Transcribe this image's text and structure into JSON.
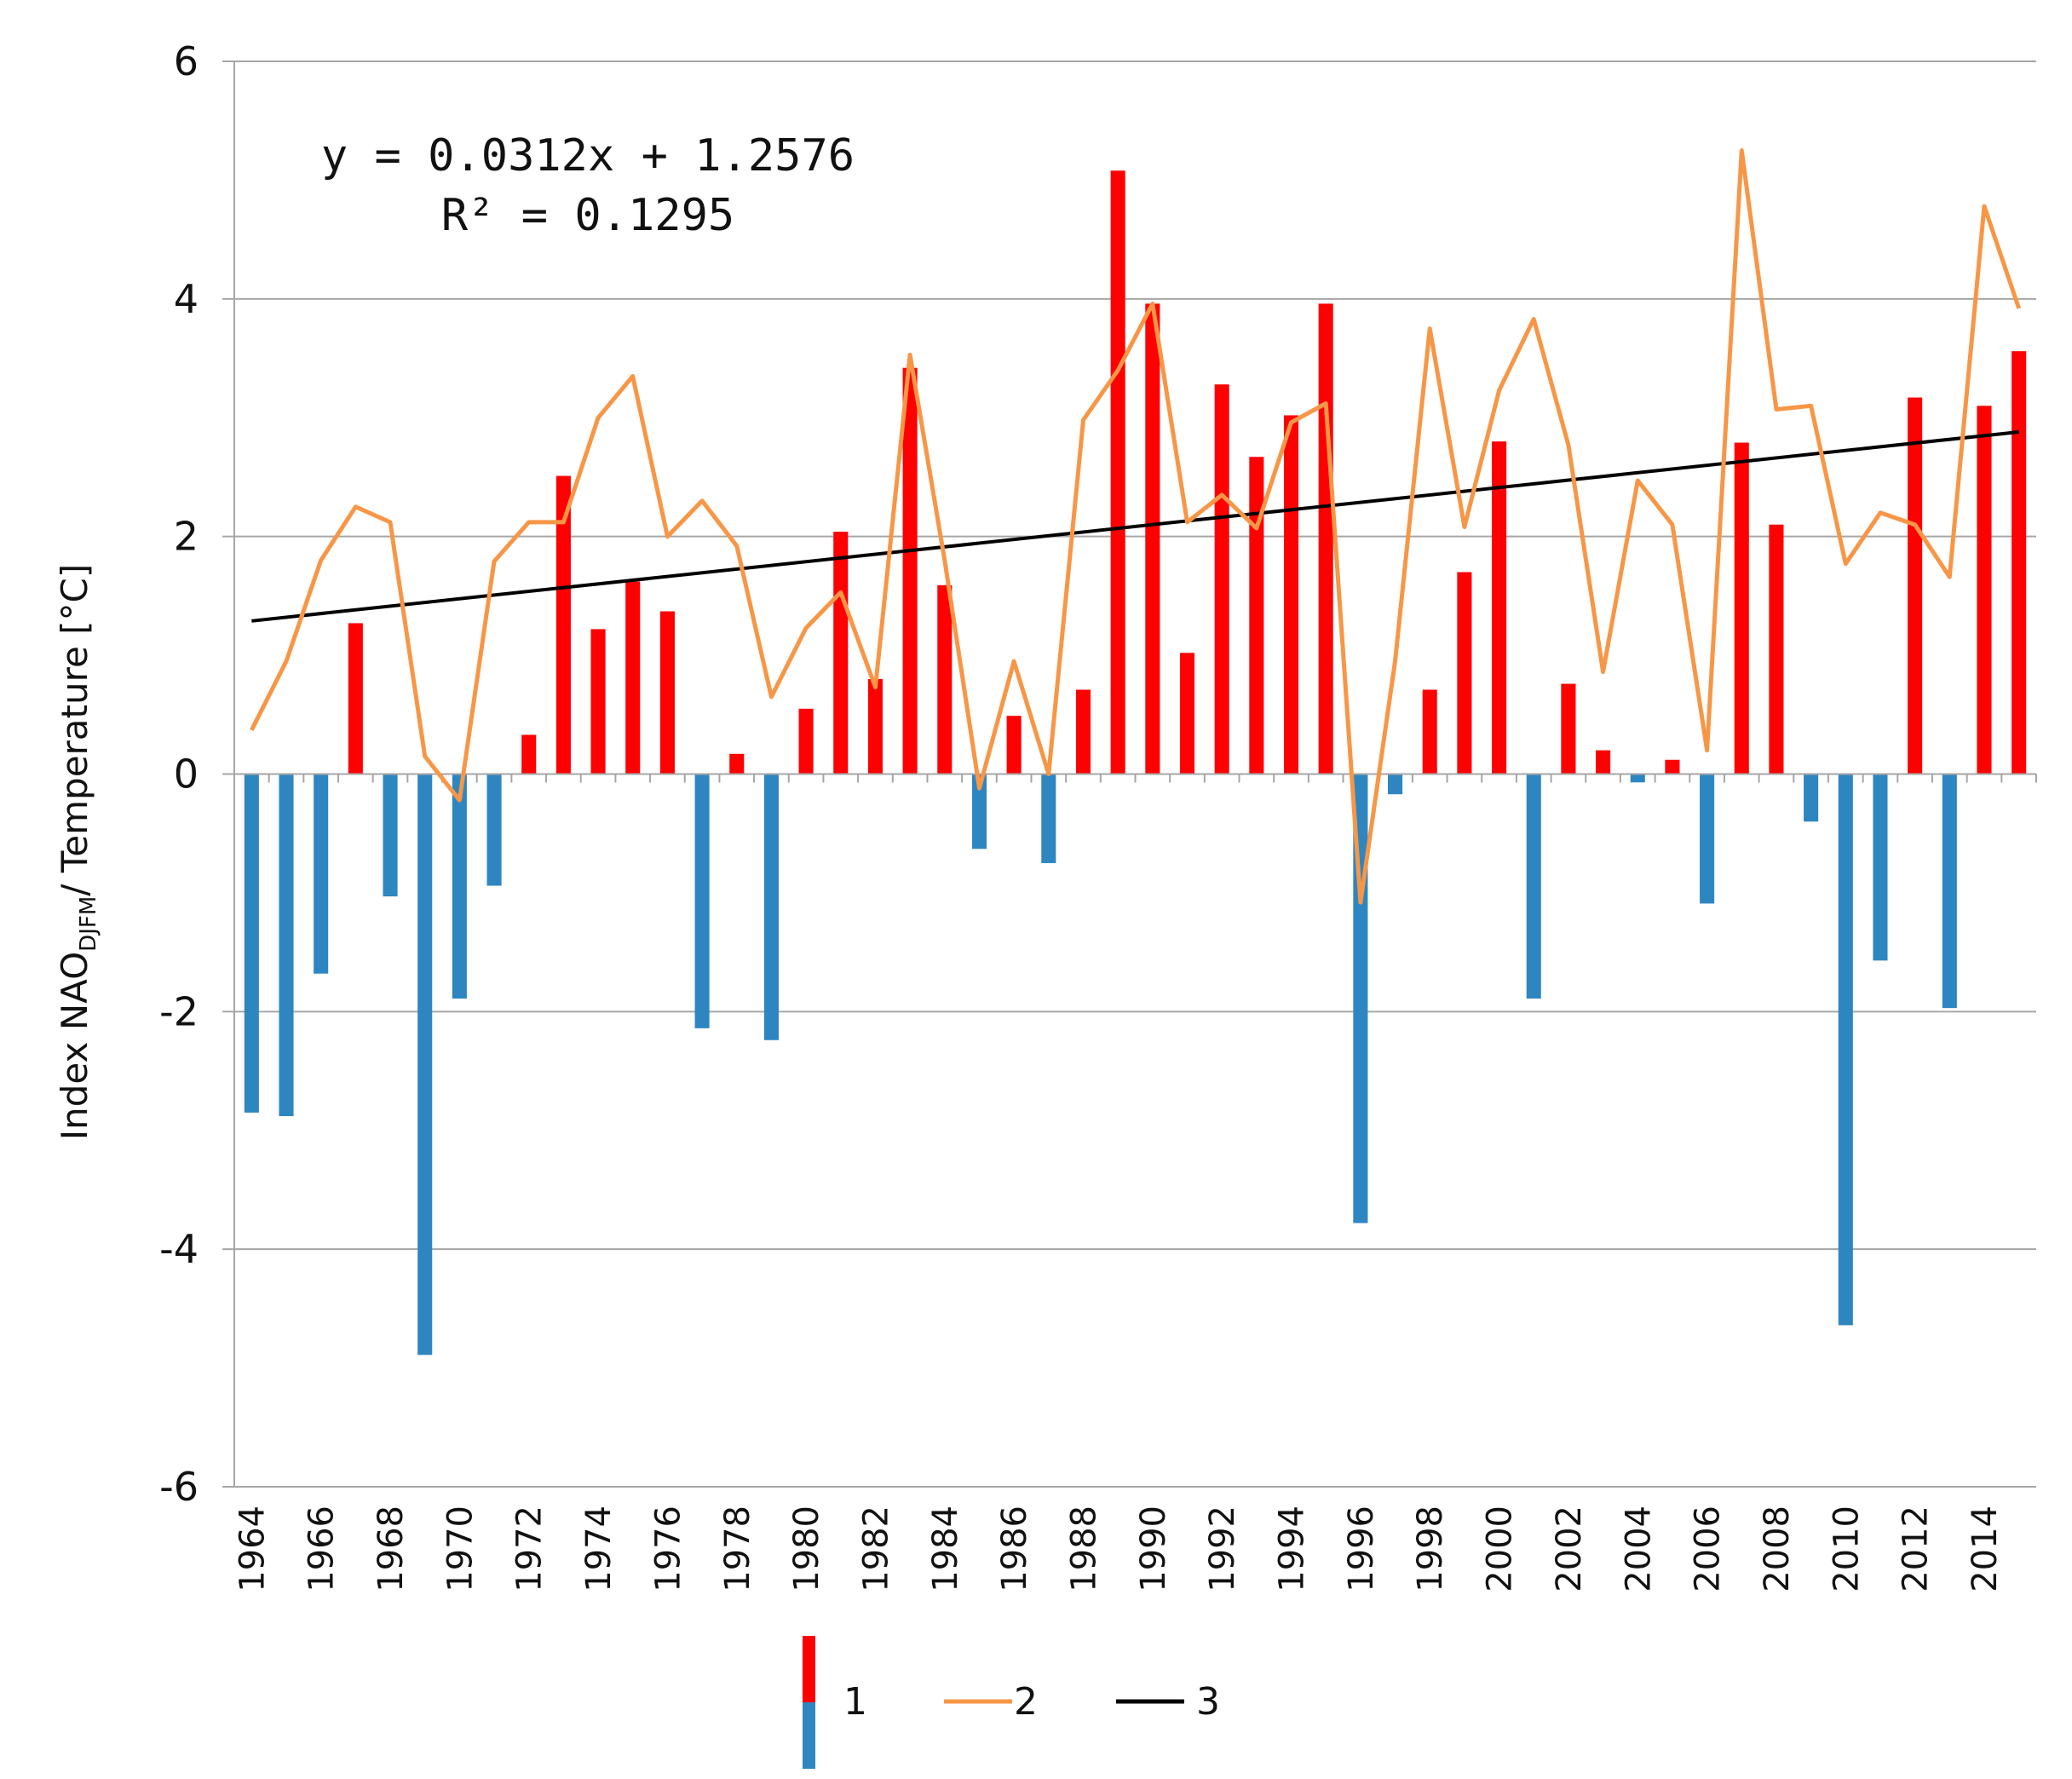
{
  "chart_data": {
    "type": "bar",
    "title": "",
    "xlabel": "",
    "ylabel": {
      "prefix": "Index NAO",
      "subscript": "DJFM",
      "suffix": "/ Temperature [°C]"
    },
    "ylim": [
      -6,
      6
    ],
    "yticks": [
      6,
      4,
      2,
      0,
      -2,
      -4,
      -6
    ],
    "years": [
      1964,
      1965,
      1966,
      1967,
      1968,
      1969,
      1970,
      1971,
      1972,
      1973,
      1974,
      1975,
      1976,
      1977,
      1978,
      1979,
      1980,
      1981,
      1982,
      1983,
      1984,
      1985,
      1986,
      1987,
      1988,
      1989,
      1990,
      1991,
      1992,
      1993,
      1994,
      1995,
      1996,
      1997,
      1998,
      1999,
      2000,
      2001,
      2002,
      2003,
      2004,
      2005,
      2006,
      2007,
      2008,
      2009,
      2010,
      2011,
      2012,
      2013,
      2014,
      2015
    ],
    "xtick_labels": [
      "1964",
      "1966",
      "1968",
      "1970",
      "1972",
      "1974",
      "1976",
      "1978",
      "1980",
      "1982",
      "1984",
      "1986",
      "1988",
      "1990",
      "1992",
      "1994",
      "1996",
      "1998",
      "2000",
      "2002",
      "2004",
      "2006",
      "2008",
      "2010",
      "2012",
      "2014"
    ],
    "series": [
      {
        "name": "1",
        "kind": "bar",
        "positive_color": "#ff0000",
        "negative_color": "#2e86c1",
        "values": [
          -2.85,
          -2.88,
          -1.68,
          1.27,
          -1.03,
          -4.89,
          -1.89,
          -0.94,
          0.33,
          2.51,
          1.22,
          1.62,
          1.37,
          -2.14,
          0.17,
          -2.24,
          0.55,
          2.04,
          0.8,
          3.42,
          1.59,
          -0.63,
          0.49,
          -0.75,
          0.71,
          5.08,
          3.96,
          1.02,
          3.28,
          2.67,
          3.02,
          3.96,
          -3.78,
          -0.17,
          0.71,
          1.7,
          2.8,
          -1.89,
          0.76,
          0.2,
          -0.07,
          0.12,
          -1.09,
          2.79,
          2.1,
          -0.4,
          -4.64,
          -1.57,
          3.17,
          -1.97,
          3.1,
          3.56
        ]
      },
      {
        "name": "2",
        "kind": "line",
        "color": "#f79646",
        "values": [
          0.37,
          0.95,
          1.8,
          2.25,
          2.12,
          0.15,
          -0.22,
          1.79,
          2.12,
          2.12,
          3.0,
          3.35,
          2.0,
          2.3,
          1.92,
          0.65,
          1.23,
          1.53,
          0.73,
          3.53,
          1.8,
          -0.12,
          0.95,
          0.0,
          2.98,
          3.4,
          3.96,
          2.12,
          2.35,
          2.07,
          2.96,
          3.12,
          -1.08,
          0.95,
          3.75,
          2.08,
          3.23,
          3.83,
          2.77,
          0.86,
          2.47,
          2.1,
          0.2,
          5.25,
          3.07,
          3.1,
          1.77,
          2.2,
          2.1,
          1.66,
          4.78,
          3.92
        ]
      },
      {
        "name": "3",
        "kind": "trend",
        "color": "#000000",
        "slope": 0.0312,
        "intercept": 1.2576
      }
    ],
    "annotations": {
      "equation": "y = 0.0312x + 1.2576",
      "r2": "R² = 0.1295"
    },
    "grid": true,
    "legend": {
      "position": "bottom-center",
      "items": [
        "1",
        "2",
        "3"
      ]
    }
  }
}
